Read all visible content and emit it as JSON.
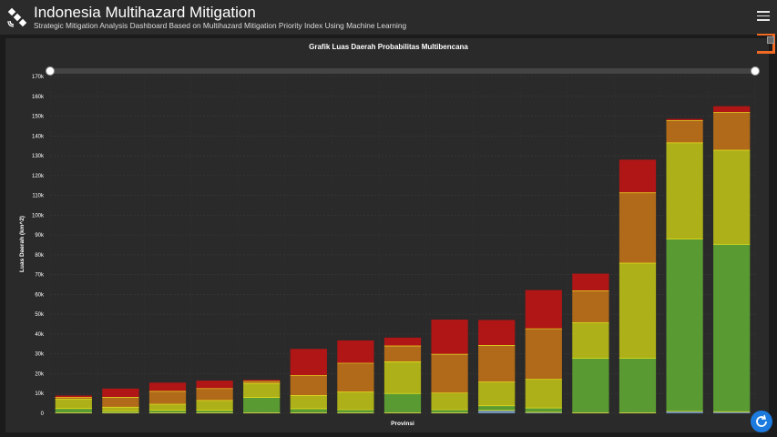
{
  "header": {
    "title": "Indonesia Multihazard Mitigation",
    "subtitle": "Strategic Mitigation Analysis Dashboard Based on Multihazard Mitigation Priority Index Using Machine Learning",
    "logo_icon": "satellite-icon",
    "menu_icon": "hamburger-menu-icon"
  },
  "colors": {
    "background": "#1b1b1b",
    "panel": "#2a2a2a",
    "accent": "#f06a23",
    "refresh": "#1d7be0"
  },
  "chart_data": {
    "type": "bar",
    "stacked": true,
    "title": "Grafik Luas Daerah Probabilitas Multibencana",
    "xlabel": "Provinsi",
    "ylabel": "Luas Daerah (km^2)",
    "ylim": [
      0,
      170000
    ],
    "yticks": [
      "0",
      "10k",
      "20k",
      "30k",
      "40k",
      "50k",
      "60k",
      "70k",
      "80k",
      "90k",
      "100k",
      "110k",
      "120k",
      "130k",
      "140k",
      "150k",
      "160k",
      "170k"
    ],
    "grid": true,
    "categories": [
      "",
      "",
      "",
      "",
      "",
      "",
      "",
      "",
      "",
      "",
      "",
      "",
      "",
      "",
      ""
    ],
    "series": [
      {
        "color": "#6e8fb8",
        "values": [
          300,
          300,
          300,
          300,
          300,
          300,
          300,
          300,
          300,
          1500,
          500,
          300,
          300,
          1000,
          800
        ]
      },
      {
        "color": "#5a9a32",
        "values": [
          2100,
          700,
          1200,
          1200,
          7700,
          2000,
          1500,
          9700,
          1500,
          2300,
          2200,
          27500,
          27500,
          87000,
          84500
        ]
      },
      {
        "color": "#adb018",
        "values": [
          4800,
          2100,
          3100,
          5000,
          7100,
          6700,
          9000,
          16000,
          8500,
          12000,
          14500,
          18000,
          48000,
          48500,
          47500
        ]
      },
      {
        "color": "#b06a1a",
        "values": [
          800,
          5000,
          6500,
          6000,
          1000,
          10000,
          14500,
          8000,
          19500,
          18500,
          25500,
          16000,
          35500,
          11300,
          19000
        ]
      },
      {
        "color": "#b01616",
        "values": [
          1000,
          4400,
          4400,
          4000,
          800,
          13500,
          11500,
          4200,
          17500,
          12800,
          19500,
          8700,
          16700,
          800,
          3200
        ]
      }
    ]
  }
}
